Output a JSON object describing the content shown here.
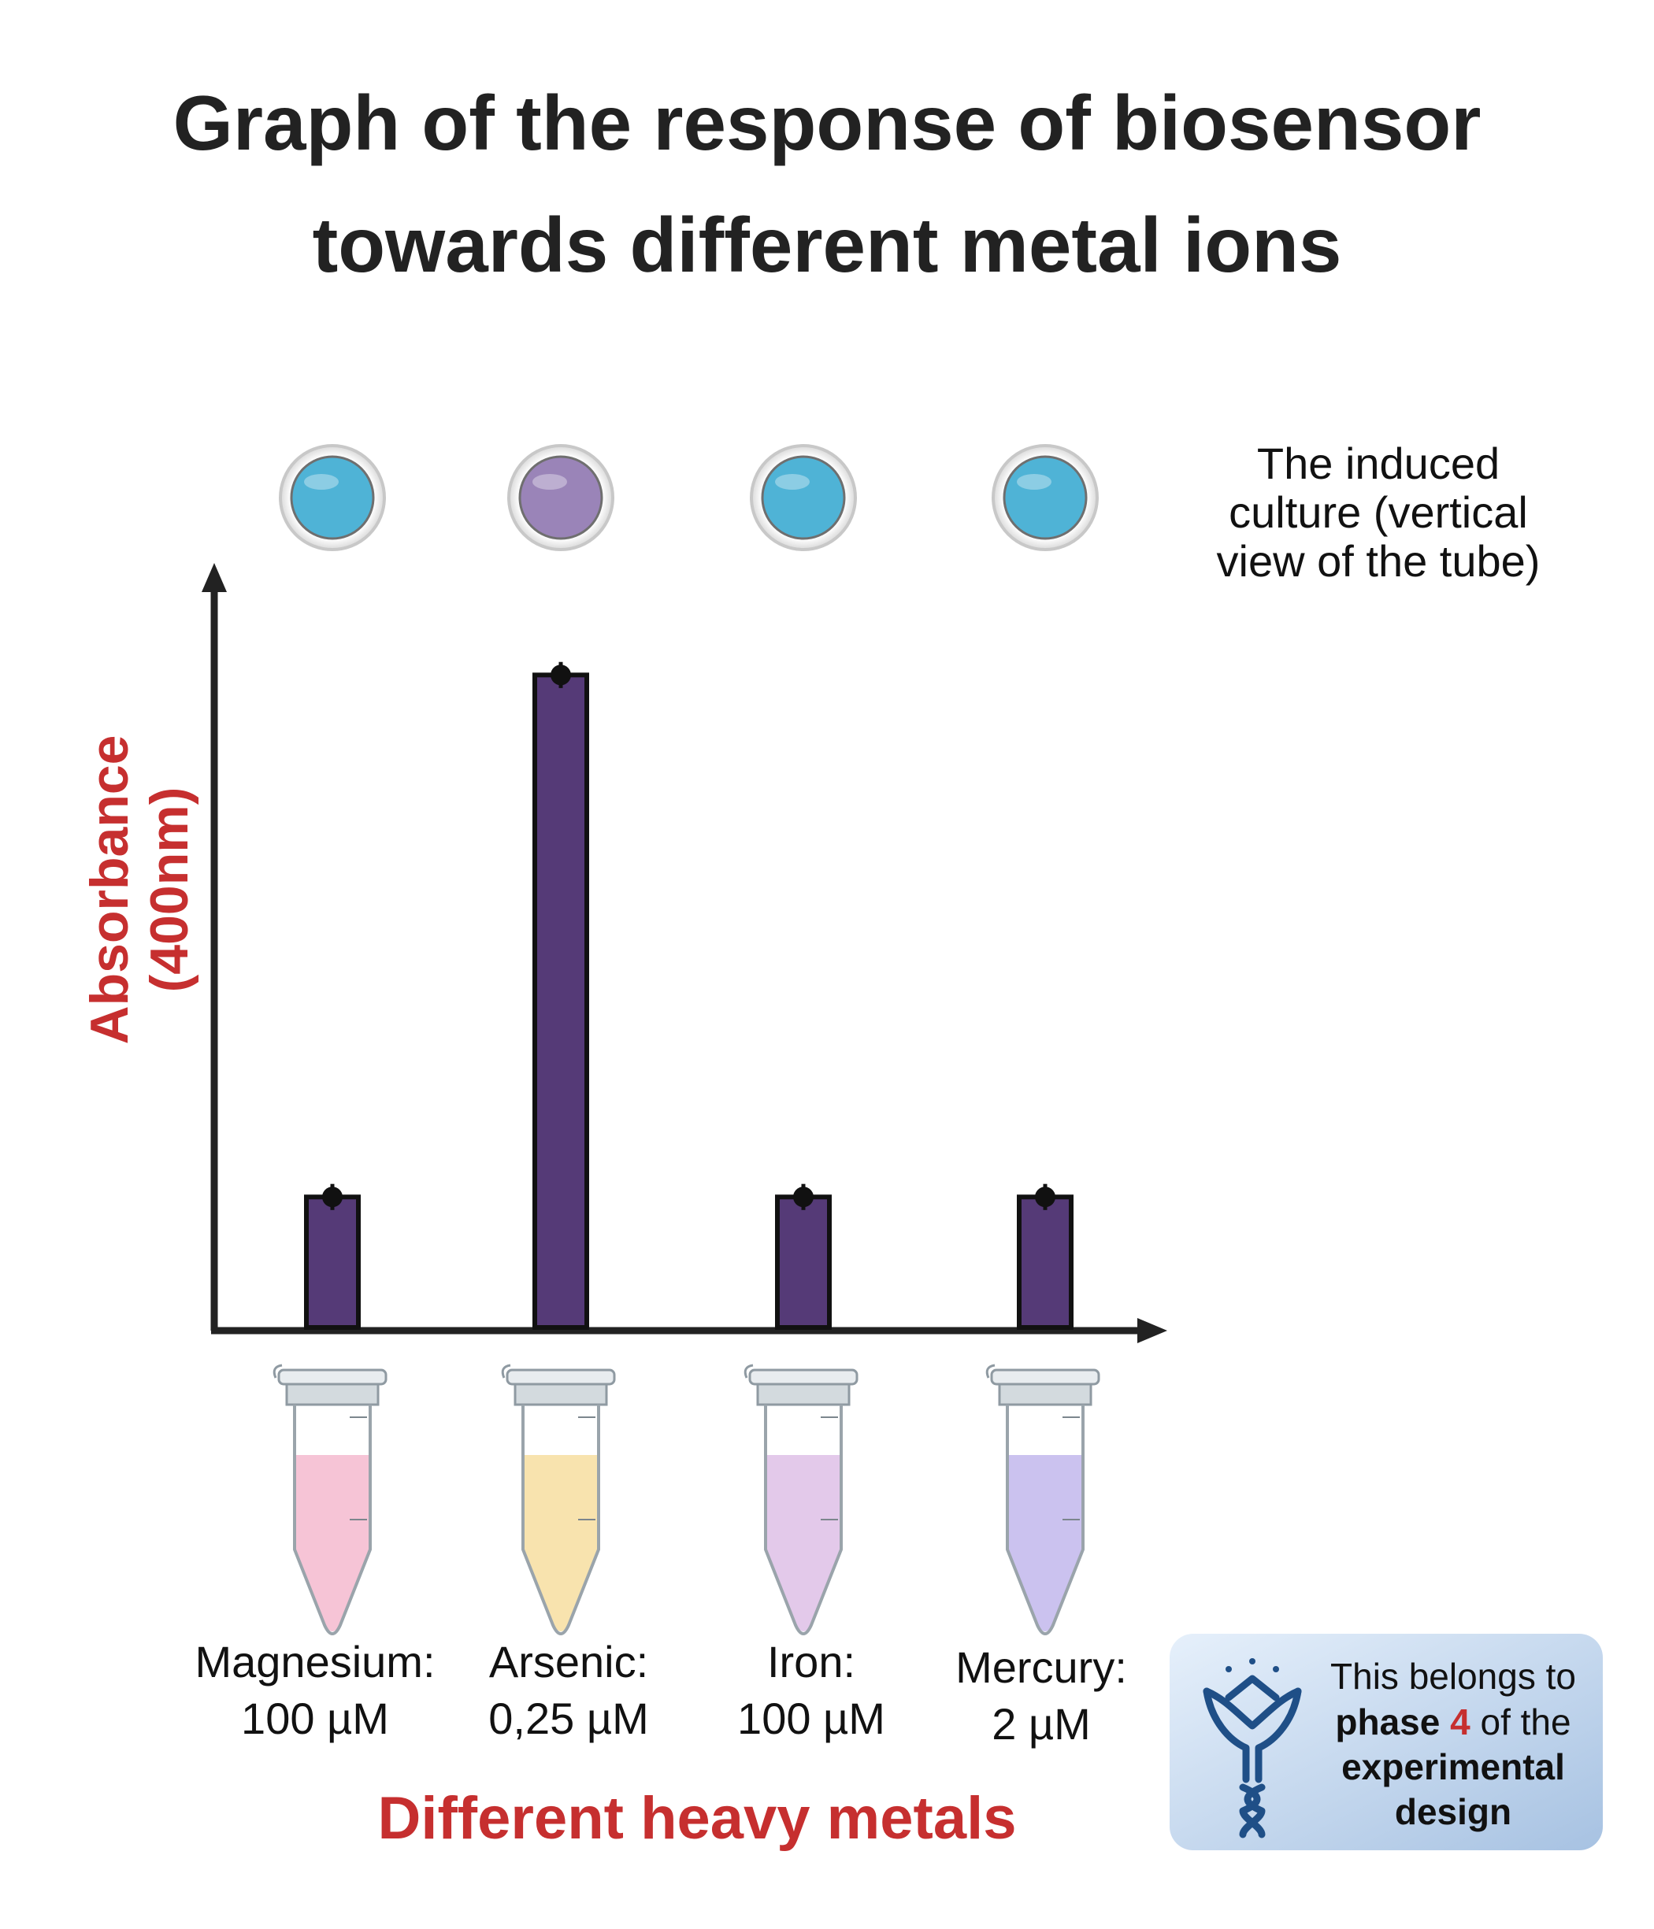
{
  "chart_data": {
    "type": "bar",
    "title_lines": [
      "Graph of the response of biosensor",
      "towards different metal ions"
    ],
    "xlabel": "Different heavy metals",
    "ylabel_lines": [
      "Absorbance",
      "(400nm)"
    ],
    "categories": [
      {
        "name": "Magnesium:",
        "conc": "100 µM"
      },
      {
        "name": "Arsenic:",
        "conc": "0,25 µM"
      },
      {
        "name": "Iron:",
        "conc": "100 µM"
      },
      {
        "name": "Mercury:",
        "conc": "2 µM"
      }
    ],
    "values": [
      0.2,
      1.0,
      0.2,
      0.2
    ],
    "error": [
      0.02,
      0.02,
      0.02,
      0.02
    ],
    "ylim": [
      0,
      1.15
    ],
    "bar_color": "#553a77",
    "culture_colors": [
      "#4fb3d6",
      "#9a84b8",
      "#4fb3d6",
      "#4fb3d6"
    ],
    "tube_liquid_colors": [
      "#f6c4d6",
      "#f8e3ae",
      "#e3c9ea",
      "#cbc2ef"
    ],
    "culture_annotation_lines": [
      "The induced",
      "culture (vertical",
      "view of the tube)"
    ],
    "axis_label_color": "#c62f2f"
  },
  "note": {
    "line1": "This belongs to",
    "line2_pre": "phase ",
    "line2_num": "4",
    "line2_post": " of the",
    "line3": "experimental",
    "line4": "design",
    "icon": "flower-dna-logo-icon"
  }
}
